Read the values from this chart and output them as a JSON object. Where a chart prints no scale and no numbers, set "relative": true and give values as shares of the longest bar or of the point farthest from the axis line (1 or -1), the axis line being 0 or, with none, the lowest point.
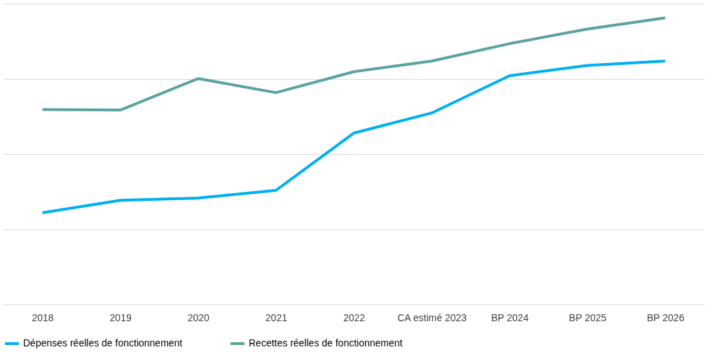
{
  "chart_data": {
    "type": "line",
    "relative": true,
    "grid": "y",
    "legend": "bottom",
    "categories": [
      "2018",
      "2019",
      "2020",
      "2021",
      "2022",
      "CA estimé 2023",
      "BP 2024",
      "BP 2025",
      "BP 2026"
    ],
    "series": [
      {
        "name": "Dépenses réelles de fonctionnement",
        "color": "#00b0f0",
        "values": [
          0.32,
          0.363,
          0.371,
          0.398,
          0.598,
          0.668,
          0.798,
          0.834,
          0.849
        ]
      },
      {
        "name": "Recettes réelles de fonctionnement",
        "color": "#5ba3a0",
        "values": [
          0.68,
          0.678,
          0.788,
          0.739,
          0.812,
          0.849,
          0.91,
          0.961,
          1.0
        ]
      }
    ]
  }
}
